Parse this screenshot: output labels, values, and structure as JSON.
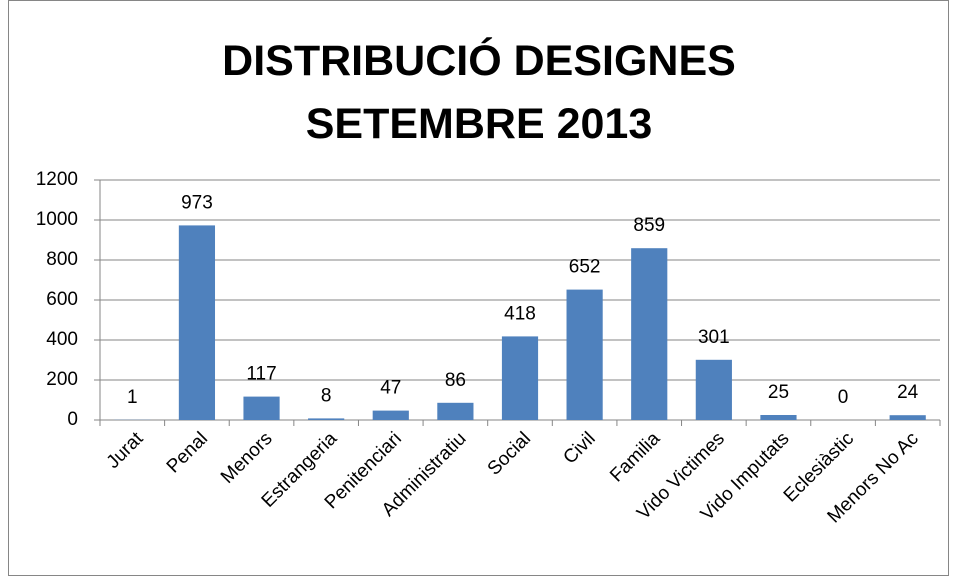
{
  "chart_data": {
    "type": "bar",
    "title": "DISTRIBUCIÓ DESIGNES SETEMBRE 2013",
    "categories": [
      "Jurat",
      "Penal",
      "Menors",
      "Estrangeria",
      "Penitenciari",
      "Administratiu",
      "Social",
      "Civil",
      "Familia",
      "Vido Victimes",
      "Vido Imputats",
      "Eclesiàstic",
      "Menors No Ac"
    ],
    "values": [
      1,
      973,
      117,
      8,
      47,
      86,
      418,
      652,
      859,
      301,
      25,
      0,
      24
    ],
    "color": "#4f81bd",
    "ylim": [
      0,
      1200
    ],
    "yticks": [
      0,
      200,
      400,
      600,
      800,
      1000,
      1200
    ],
    "grid": true
  }
}
